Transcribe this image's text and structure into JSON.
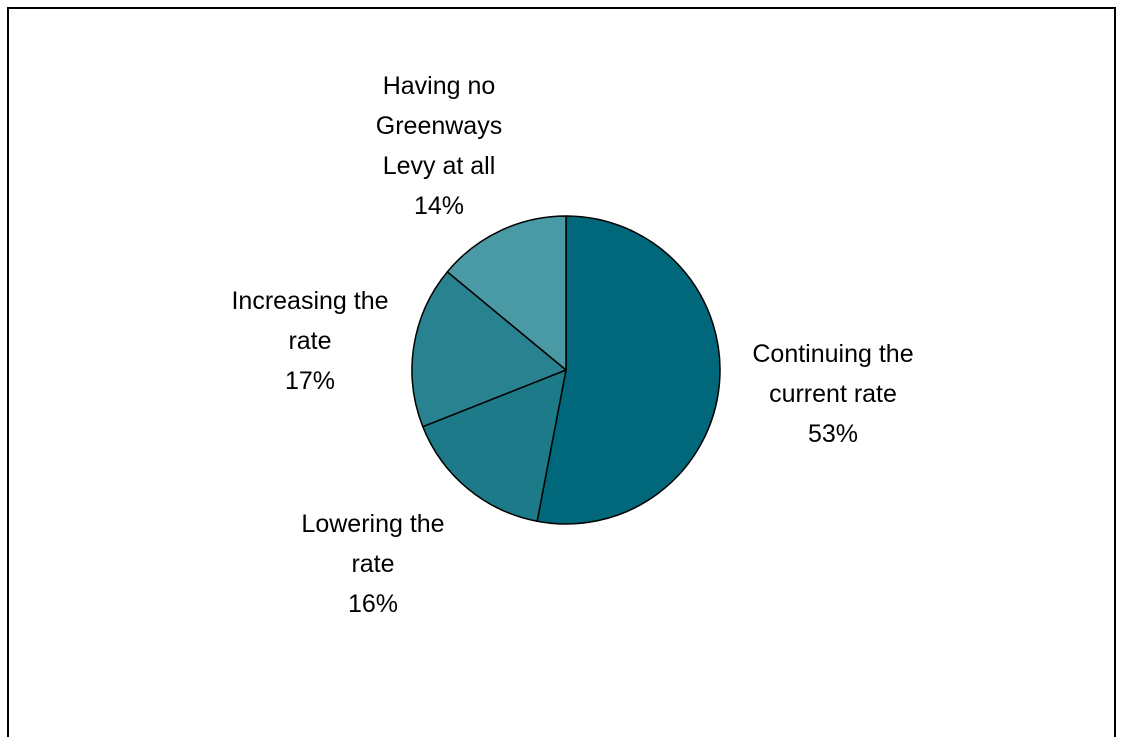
{
  "chart_data": {
    "type": "pie",
    "title": "",
    "slices": [
      {
        "label_lines": [
          "Continuing the",
          "current rate"
        ],
        "percent_label": "53%",
        "value": 53,
        "color": "#00687A"
      },
      {
        "label_lines": [
          "Lowering the",
          "rate"
        ],
        "percent_label": "16%",
        "value": 16,
        "color": "#1C7A89"
      },
      {
        "label_lines": [
          "Increasing the",
          "rate"
        ],
        "percent_label": "17%",
        "value": 17,
        "color": "#288290"
      },
      {
        "label_lines": [
          "Having no",
          "Greenways",
          "Levy at all"
        ],
        "percent_label": "14%",
        "value": 14,
        "color": "#4A9AA6"
      }
    ],
    "start_angle": "12 o'clock",
    "direction": "clockwise",
    "legend": "none"
  }
}
